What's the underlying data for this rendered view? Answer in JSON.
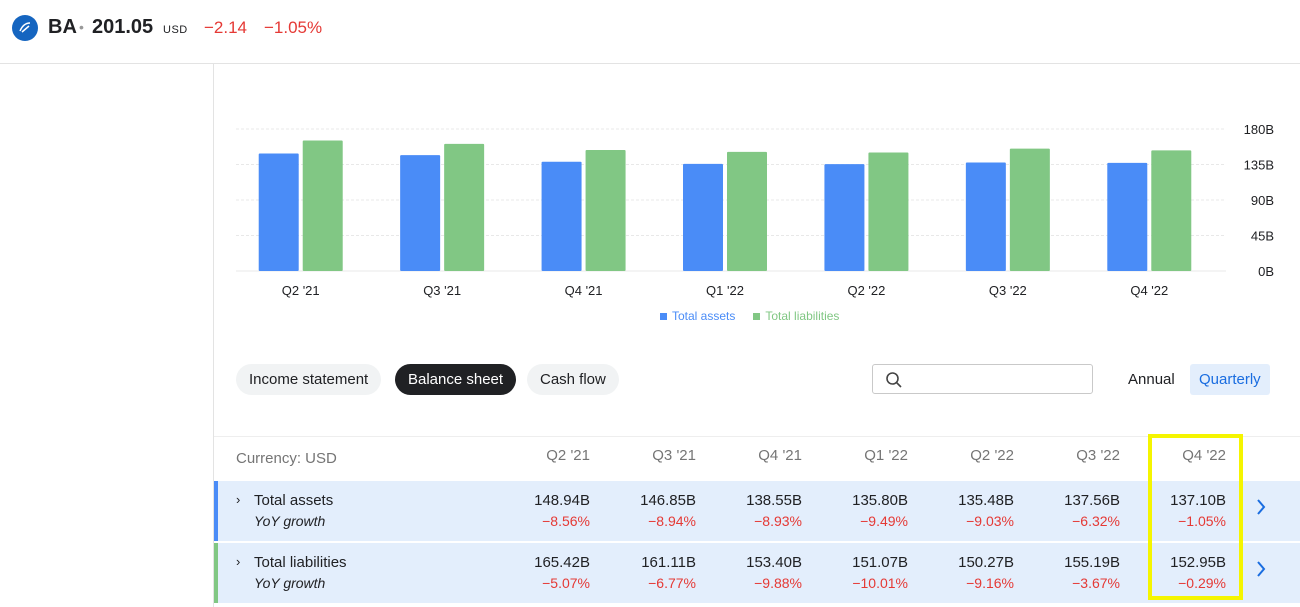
{
  "header": {
    "ticker": "BA",
    "separator": "•",
    "price": "201.05",
    "currency": "USD",
    "change": "−2.14",
    "change_pct": "−1.05%"
  },
  "colors": {
    "assets": "#4a8cf7",
    "liabilities": "#81c784",
    "negative": "#e53935",
    "accent": "#1a6de0"
  },
  "chart_data": {
    "type": "bar",
    "categories": [
      "Q2 '21",
      "Q3 '21",
      "Q4 '21",
      "Q1 '22",
      "Q2 '22",
      "Q3 '22",
      "Q4 '22"
    ],
    "series": [
      {
        "name": "Total assets",
        "values": [
          148.94,
          146.85,
          138.55,
          135.8,
          135.48,
          137.56,
          137.1
        ]
      },
      {
        "name": "Total liabilities",
        "values": [
          165.42,
          161.11,
          153.4,
          151.07,
          150.27,
          155.19,
          152.95
        ]
      }
    ],
    "yticks": [
      "180B",
      "135B",
      "90B",
      "45B",
      "0B"
    ],
    "ytick_values": [
      180,
      135,
      90,
      45,
      0
    ],
    "ylim": [
      0,
      180
    ],
    "legend_position": "bottom-center",
    "grid": true
  },
  "tabs": {
    "income": "Income statement",
    "balance": "Balance sheet",
    "cashflow": "Cash flow"
  },
  "search": {
    "placeholder": ""
  },
  "period": {
    "annual": "Annual",
    "quarterly": "Quarterly"
  },
  "table": {
    "currency_label": "Currency: USD",
    "columns": [
      "Q2 '21",
      "Q3 '21",
      "Q4 '21",
      "Q1 '22",
      "Q2 '22",
      "Q3 '22",
      "Q4 '22"
    ],
    "rows": [
      {
        "label": "Total assets",
        "sub": "YoY growth",
        "values": [
          "148.94B",
          "146.85B",
          "138.55B",
          "135.80B",
          "135.48B",
          "137.56B",
          "137.10B"
        ],
        "growth": [
          "−8.56%",
          "−8.94%",
          "−8.93%",
          "−9.49%",
          "−9.03%",
          "−6.32%",
          "−1.05%"
        ]
      },
      {
        "label": "Total liabilities",
        "sub": "YoY growth",
        "values": [
          "165.42B",
          "161.11B",
          "153.40B",
          "151.07B",
          "150.27B",
          "155.19B",
          "152.95B"
        ],
        "growth": [
          "−5.07%",
          "−6.77%",
          "−9.88%",
          "−10.01%",
          "−9.16%",
          "−3.67%",
          "−0.29%"
        ]
      }
    ]
  }
}
